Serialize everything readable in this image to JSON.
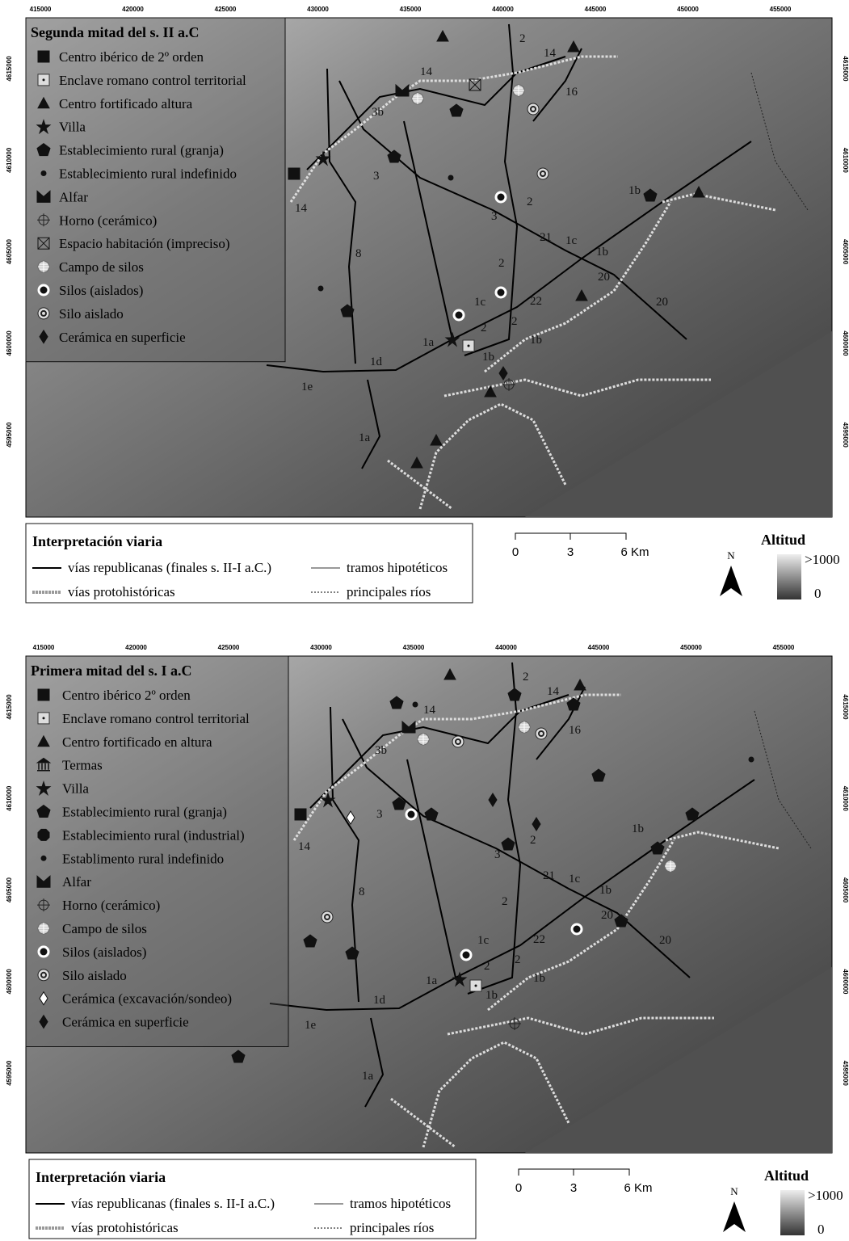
{
  "panels": [
    {
      "x_labels": [
        "415000",
        "420000",
        "425000",
        "430000",
        "435000",
        "440000",
        "445000",
        "450000",
        "455000"
      ],
      "y_labels": [
        "4615000",
        "4610000",
        "4605000",
        "4600000",
        "4595000"
      ],
      "legend": {
        "title": "Segunda mitad del s. II a.C",
        "items": [
          "Centro ibérico de 2º orden",
          "Enclave romano control territorial",
          "Centro fortificado altura",
          "Villa",
          "Establecimiento rural (granja)",
          "Establecimiento rural indefinido",
          "Alfar",
          "Horno (cerámico)",
          "Espacio habitación (impreciso)",
          "Campo de silos",
          "Silos (aislados)",
          "Silo aislado",
          "Cerámica en superficie"
        ]
      },
      "road_labels": [
        "14",
        "3b",
        "14",
        "14",
        "16",
        "3",
        "2",
        "2",
        "3",
        "8",
        "21",
        "1c",
        "1b",
        "1b",
        "2",
        "20",
        "20",
        "22",
        "1c",
        "2",
        "2",
        "1b",
        "1a",
        "1b",
        "1d",
        "1e",
        "1a"
      ],
      "roads_legend": {
        "title": "Interpretación viaria",
        "items": [
          "vías republicanas (finales s. II-I a.C.)",
          "tramos hipotéticos",
          "vías protohistóricas",
          "principales ríos"
        ]
      },
      "scale": [
        "0",
        "3",
        "6 Km"
      ],
      "north": "N",
      "altitude": {
        "title": "Altitud",
        "max": ">1000",
        "min": "0"
      }
    },
    {
      "x_labels": [
        "415000",
        "420000",
        "425000",
        "430000",
        "435000",
        "440000",
        "445000",
        "450000",
        "455000"
      ],
      "y_labels": [
        "4615000",
        "4610000",
        "4605000",
        "4600000",
        "4595000"
      ],
      "legend": {
        "title": "Primera mitad del s. I a.C",
        "items": [
          "Centro ibérico 2º orden",
          "Enclave romano control territorial",
          "Centro fortificado en altura",
          "Termas",
          "Villa",
          "Establecimiento rural (granja)",
          "Establecimiento rural (industrial)",
          "Establimento rural indefinido",
          "Alfar",
          "Horno (cerámico)",
          "Campo de silos",
          "Silos (aislados)",
          "Silo aislado",
          "Cerámica (excavación/sondeo)",
          "Cerámica en superficie"
        ]
      },
      "road_labels": [
        "14",
        "3b",
        "14",
        "14",
        "16",
        "3",
        "2",
        "2",
        "3",
        "8",
        "21",
        "1c",
        "1b",
        "1b",
        "2",
        "20",
        "20",
        "22",
        "1c",
        "2",
        "2",
        "1b",
        "1a",
        "1b",
        "1d",
        "1e",
        "1a"
      ],
      "roads_legend": {
        "title": "Interpretación viaria",
        "items": [
          "vías republicanas (finales s. II-I a.C.)",
          "tramos hipotéticos",
          "vías protohistóricas",
          "principales ríos"
        ]
      },
      "scale": [
        "0",
        "3",
        "6 Km"
      ],
      "north": "N",
      "altitude": {
        "title": "Altitud",
        "max": ">1000",
        "min": "0"
      }
    }
  ]
}
